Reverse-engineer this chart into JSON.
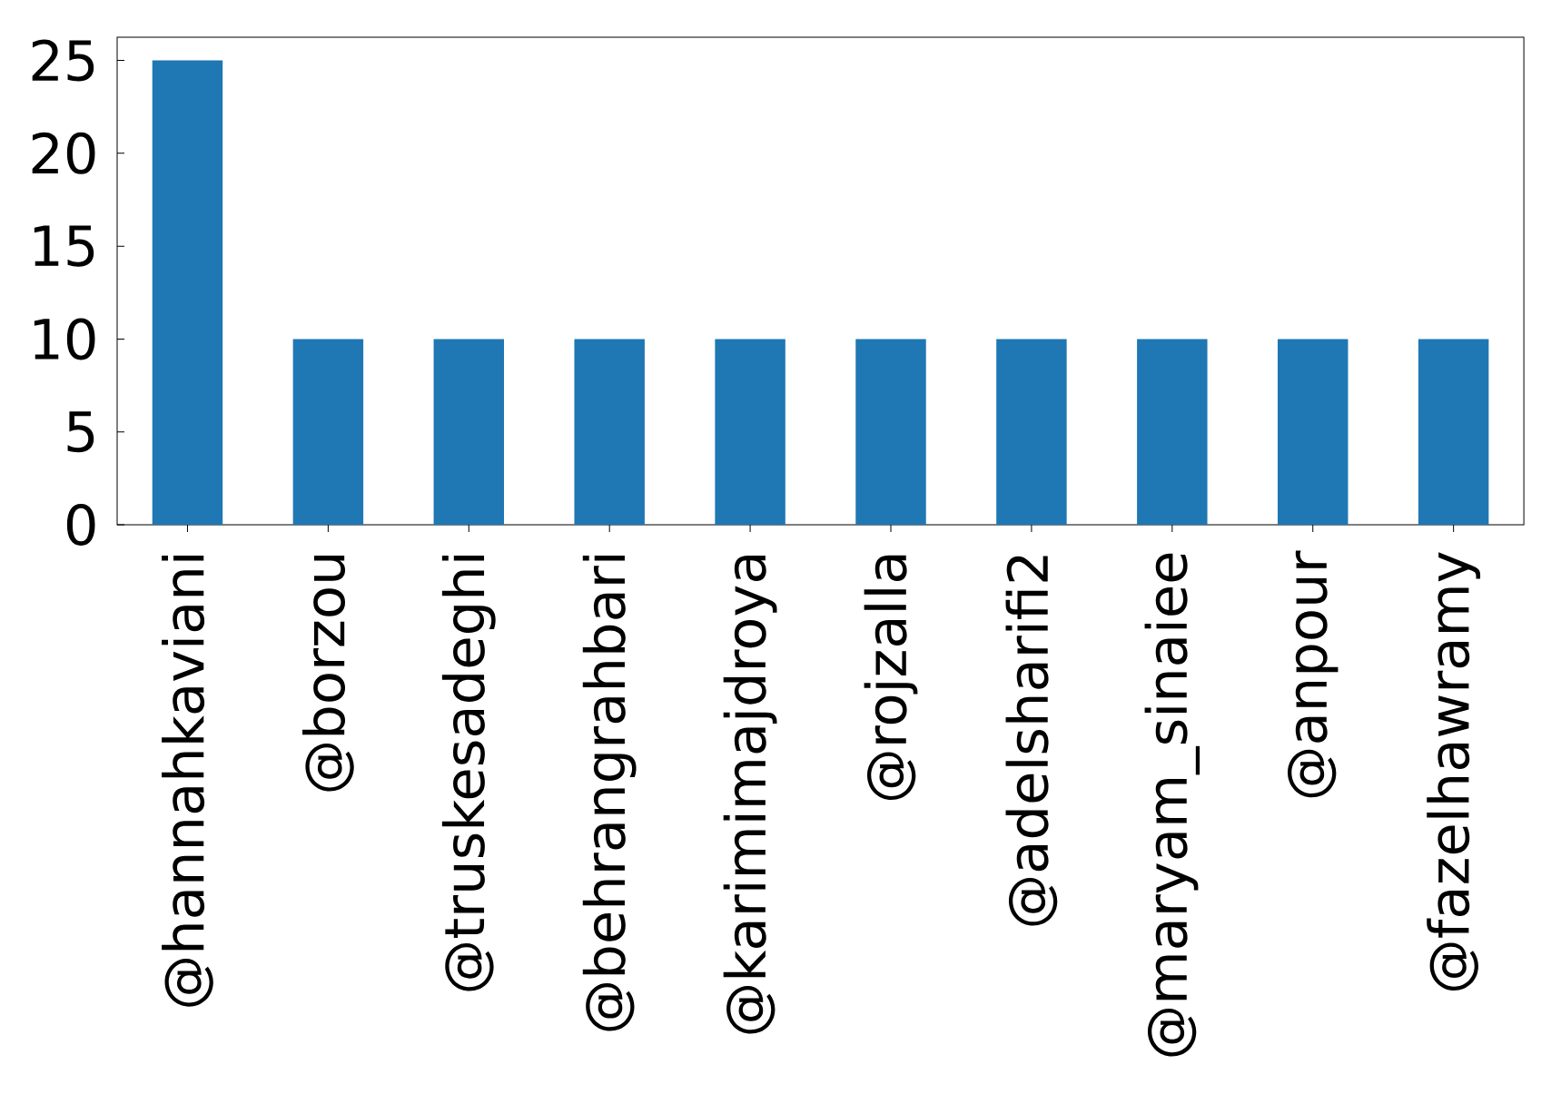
{
  "chart_data": {
    "type": "bar",
    "categories": [
      "@hannahkaviani",
      "@borzou",
      "@truskesadeghi",
      "@behrangrahbari",
      "@karimimajdroya",
      "@rojzalla",
      "@adelsharifi2",
      "@maryam_sinaiee",
      "@anpour",
      "@fazelhawramy"
    ],
    "values": [
      25,
      10,
      10,
      10,
      10,
      10,
      10,
      10,
      10,
      10
    ],
    "color": "#1f77b4",
    "ylim": [
      0,
      26.25
    ],
    "yticks": [
      0,
      5,
      10,
      15,
      20,
      25
    ]
  }
}
